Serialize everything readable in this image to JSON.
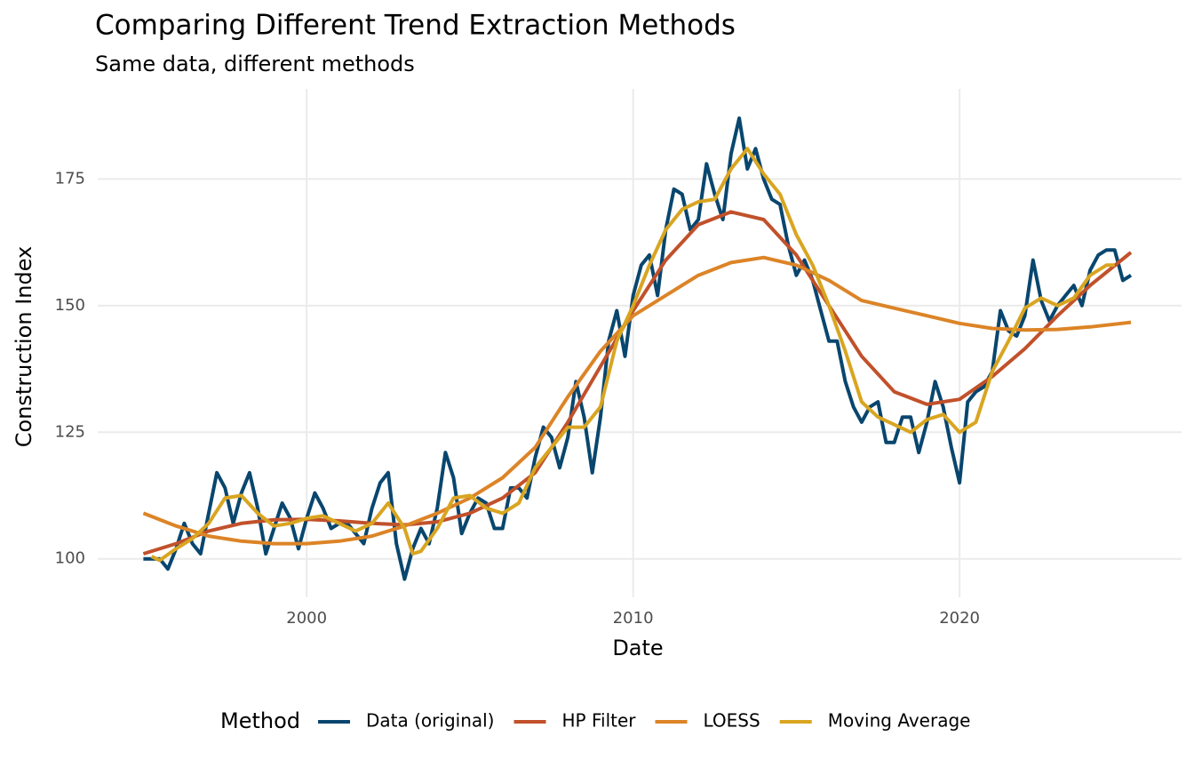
{
  "chart_data": {
    "type": "line",
    "title": "Comparing Different Trend Extraction Methods",
    "subtitle": "Same data, different methods",
    "x_label": "Date",
    "y_label": "Construction Index",
    "legend_title": "Method",
    "legend_position": "bottom",
    "grid": true,
    "xlim": [
      1993.6,
      2026.8
    ],
    "xticks": [
      2000,
      2010,
      2020
    ],
    "ylim": [
      92.4,
      192.8
    ],
    "yticks": [
      100,
      125,
      150,
      175
    ],
    "series": [
      {
        "name": "Data (original)",
        "color": "#08466e",
        "x": [
          1995,
          1995.25,
          1995.5,
          1995.75,
          1996,
          1996.25,
          1996.5,
          1996.75,
          1997,
          1997.25,
          1997.5,
          1997.75,
          1998,
          1998.25,
          1998.5,
          1998.75,
          1999,
          1999.25,
          1999.5,
          1999.75,
          2000,
          2000.25,
          2000.5,
          2000.75,
          2001,
          2001.25,
          2001.5,
          2001.75,
          2002,
          2002.25,
          2002.5,
          2002.75,
          2003,
          2003.25,
          2003.5,
          2003.75,
          2004,
          2004.25,
          2004.5,
          2004.75,
          2005,
          2005.25,
          2005.5,
          2005.75,
          2006,
          2006.25,
          2006.5,
          2006.75,
          2007,
          2007.25,
          2007.5,
          2007.75,
          2008,
          2008.25,
          2008.5,
          2008.75,
          2009,
          2009.25,
          2009.5,
          2009.75,
          2010,
          2010.25,
          2010.5,
          2010.75,
          2011,
          2011.25,
          2011.5,
          2011.75,
          2012,
          2012.25,
          2012.5,
          2012.75,
          2013,
          2013.25,
          2013.5,
          2013.75,
          2014,
          2014.25,
          2014.5,
          2014.75,
          2015,
          2015.25,
          2015.5,
          2015.75,
          2016,
          2016.25,
          2016.5,
          2016.75,
          2017,
          2017.25,
          2017.5,
          2017.75,
          2018,
          2018.25,
          2018.5,
          2018.75,
          2019,
          2019.25,
          2019.5,
          2019.75,
          2020,
          2020.25,
          2020.5,
          2020.75,
          2021,
          2021.25,
          2021.5,
          2021.75,
          2022,
          2022.25,
          2022.5,
          2022.75,
          2023,
          2023.25,
          2023.5,
          2023.75,
          2024,
          2024.25,
          2024.5,
          2024.75,
          2025,
          2025.25
        ],
        "values": [
          100,
          100,
          100,
          98,
          102,
          107,
          103,
          101,
          109,
          117,
          114,
          107,
          113,
          117,
          110,
          101,
          106,
          111,
          108,
          102,
          108,
          113,
          110,
          106,
          107,
          107,
          105,
          103,
          110,
          115,
          117,
          103,
          96,
          102,
          106,
          103,
          110,
          121,
          116,
          105,
          109,
          112,
          111,
          106,
          106,
          114,
          114,
          112,
          120,
          126,
          124,
          118,
          124,
          135,
          128,
          117,
          128,
          143,
          149,
          140,
          152,
          158,
          160,
          152,
          165,
          173,
          172,
          165,
          167,
          178,
          172,
          167,
          180,
          187,
          177,
          181,
          175,
          171,
          170,
          162,
          156,
          159,
          155,
          149,
          143,
          143,
          135,
          130,
          127,
          130,
          131,
          123,
          123,
          128,
          128,
          121,
          127,
          135,
          130,
          122,
          115,
          131,
          133,
          134,
          137,
          149,
          145,
          144,
          148,
          159,
          151,
          147,
          150,
          152,
          154,
          150,
          157,
          160,
          161,
          161,
          155,
          156
        ]
      },
      {
        "name": "HP Filter",
        "color": "#c1512b",
        "x": [
          1995,
          1996,
          1997,
          1998,
          1999,
          2000,
          2001,
          2002,
          2003,
          2004,
          2005,
          2006,
          2007,
          2008,
          2009,
          2010,
          2011,
          2012,
          2013,
          2014,
          2015,
          2016,
          2017,
          2018,
          2019,
          2020,
          2021,
          2022,
          2023,
          2024,
          2025.25
        ],
        "values": [
          101,
          103,
          105.5,
          107,
          107.7,
          107.8,
          107.5,
          107,
          106.7,
          107.3,
          109,
          112,
          117,
          127,
          138,
          149,
          159,
          166,
          168.5,
          167,
          160,
          150,
          140,
          133,
          130.5,
          131.5,
          136,
          141.5,
          148,
          154,
          160.5
        ]
      },
      {
        "name": "LOESS",
        "color": "#dc8427",
        "x": [
          1995,
          1996,
          1997,
          1998,
          1999,
          2000,
          2001,
          2002,
          2003,
          2004,
          2005,
          2006,
          2007,
          2008,
          2009,
          2010,
          2011,
          2012,
          2013,
          2014,
          2015,
          2016,
          2017,
          2018,
          2019,
          2020,
          2021,
          2022,
          2023,
          2024,
          2025.25
        ],
        "values": [
          109,
          106.5,
          104.5,
          103.5,
          103,
          103,
          103.5,
          104.5,
          106.5,
          109,
          112,
          116,
          122,
          132,
          141,
          148,
          152,
          156,
          158.5,
          159.5,
          158,
          155,
          151,
          149.5,
          148,
          146.5,
          145.5,
          145.2,
          145.3,
          145.8,
          146.7
        ]
      },
      {
        "name": "Moving Average",
        "color": "#d9a521",
        "x": [
          1995.25,
          1995.5,
          1996,
          1996.5,
          1997,
          1997.5,
          1998,
          1998.5,
          1999,
          1999.5,
          2000,
          2000.5,
          2001,
          2001.5,
          2002,
          2002.5,
          2003,
          2003.25,
          2003.5,
          2004,
          2004.5,
          2005,
          2005.5,
          2006,
          2006.5,
          2007,
          2007.5,
          2008,
          2008.5,
          2009,
          2009.5,
          2010,
          2010.5,
          2011,
          2011.5,
          2012,
          2012.5,
          2013,
          2013.5,
          2014,
          2014.5,
          2015,
          2015.5,
          2016,
          2016.5,
          2017,
          2017.5,
          2018,
          2018.5,
          2019,
          2019.5,
          2020,
          2020.5,
          2021,
          2021.5,
          2022,
          2022.5,
          2023,
          2023.5,
          2024,
          2024.5,
          2024.75
        ],
        "values": [
          100.5,
          99.7,
          102,
          104,
          107,
          112,
          112.5,
          109,
          106.5,
          107,
          108,
          108.5,
          107,
          105.5,
          107,
          111,
          106,
          101,
          101.5,
          106,
          112,
          112.5,
          110,
          109,
          111,
          118,
          122,
          126,
          126,
          130,
          143,
          150,
          158,
          165,
          169,
          170.5,
          171,
          177,
          181,
          176,
          172,
          164,
          158,
          150,
          141,
          131,
          128,
          126.5,
          125,
          127.5,
          128.5,
          125,
          127,
          137,
          143,
          149.5,
          151.5,
          150,
          151.5,
          156,
          158,
          158
        ]
      }
    ]
  }
}
